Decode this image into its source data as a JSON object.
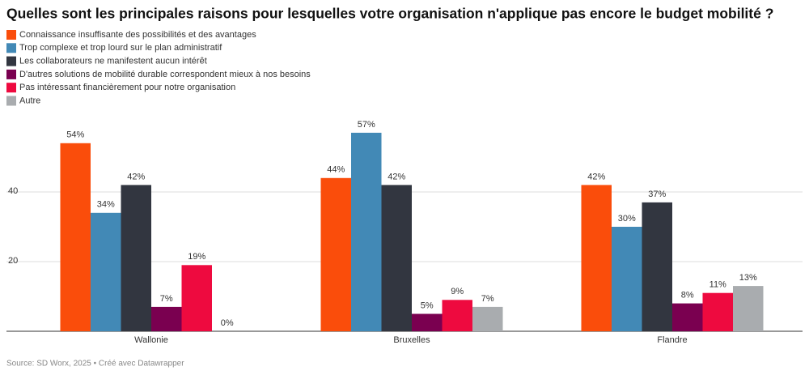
{
  "chart_data": {
    "type": "bar",
    "title": "Quelles sont les principales raisons pour lesquelles votre organisation n'applique pas encore le budget mobilité ?",
    "source": "Source: SD Worx, 2025 • Créé avec Datawrapper",
    "categories": [
      "Wallonie",
      "Bruxelles",
      "Flandre"
    ],
    "series": [
      {
        "name": "Connaissance insuffisante des possibilités et des avantages",
        "color": "#fa4d0b",
        "values": [
          54,
          44,
          42
        ],
        "value_labels": [
          "54%",
          "44%",
          "42%"
        ]
      },
      {
        "name": "Trop complexe et trop lourd sur le plan administratif",
        "color": "#4289b6",
        "values": [
          34,
          57,
          30
        ],
        "value_labels": [
          "34%",
          "57%",
          "30%"
        ]
      },
      {
        "name": "Les collaborateurs ne manifestent aucun intérêt",
        "color": "#323640",
        "values": [
          42,
          42,
          37
        ],
        "value_labels": [
          "42%",
          "42%",
          "37%"
        ]
      },
      {
        "name": "D'autres solutions de mobilité durable correspondent mieux à nos besoins",
        "color": "#7a0050",
        "values": [
          7,
          5,
          8
        ],
        "value_labels": [
          "7%",
          "5%",
          "8%"
        ]
      },
      {
        "name": "Pas intéressant financièrement pour notre organisation",
        "color": "#ee0a3f",
        "values": [
          19,
          9,
          11
        ],
        "value_labels": [
          "19%",
          "9%",
          "11%"
        ]
      },
      {
        "name": "Autre",
        "color": "#a9acaf",
        "values": [
          0,
          7,
          13
        ],
        "value_labels": [
          "0%",
          "7%",
          "13%"
        ]
      }
    ],
    "ylim": [
      0,
      60
    ],
    "yticks": [
      20,
      40
    ],
    "grid": true
  }
}
